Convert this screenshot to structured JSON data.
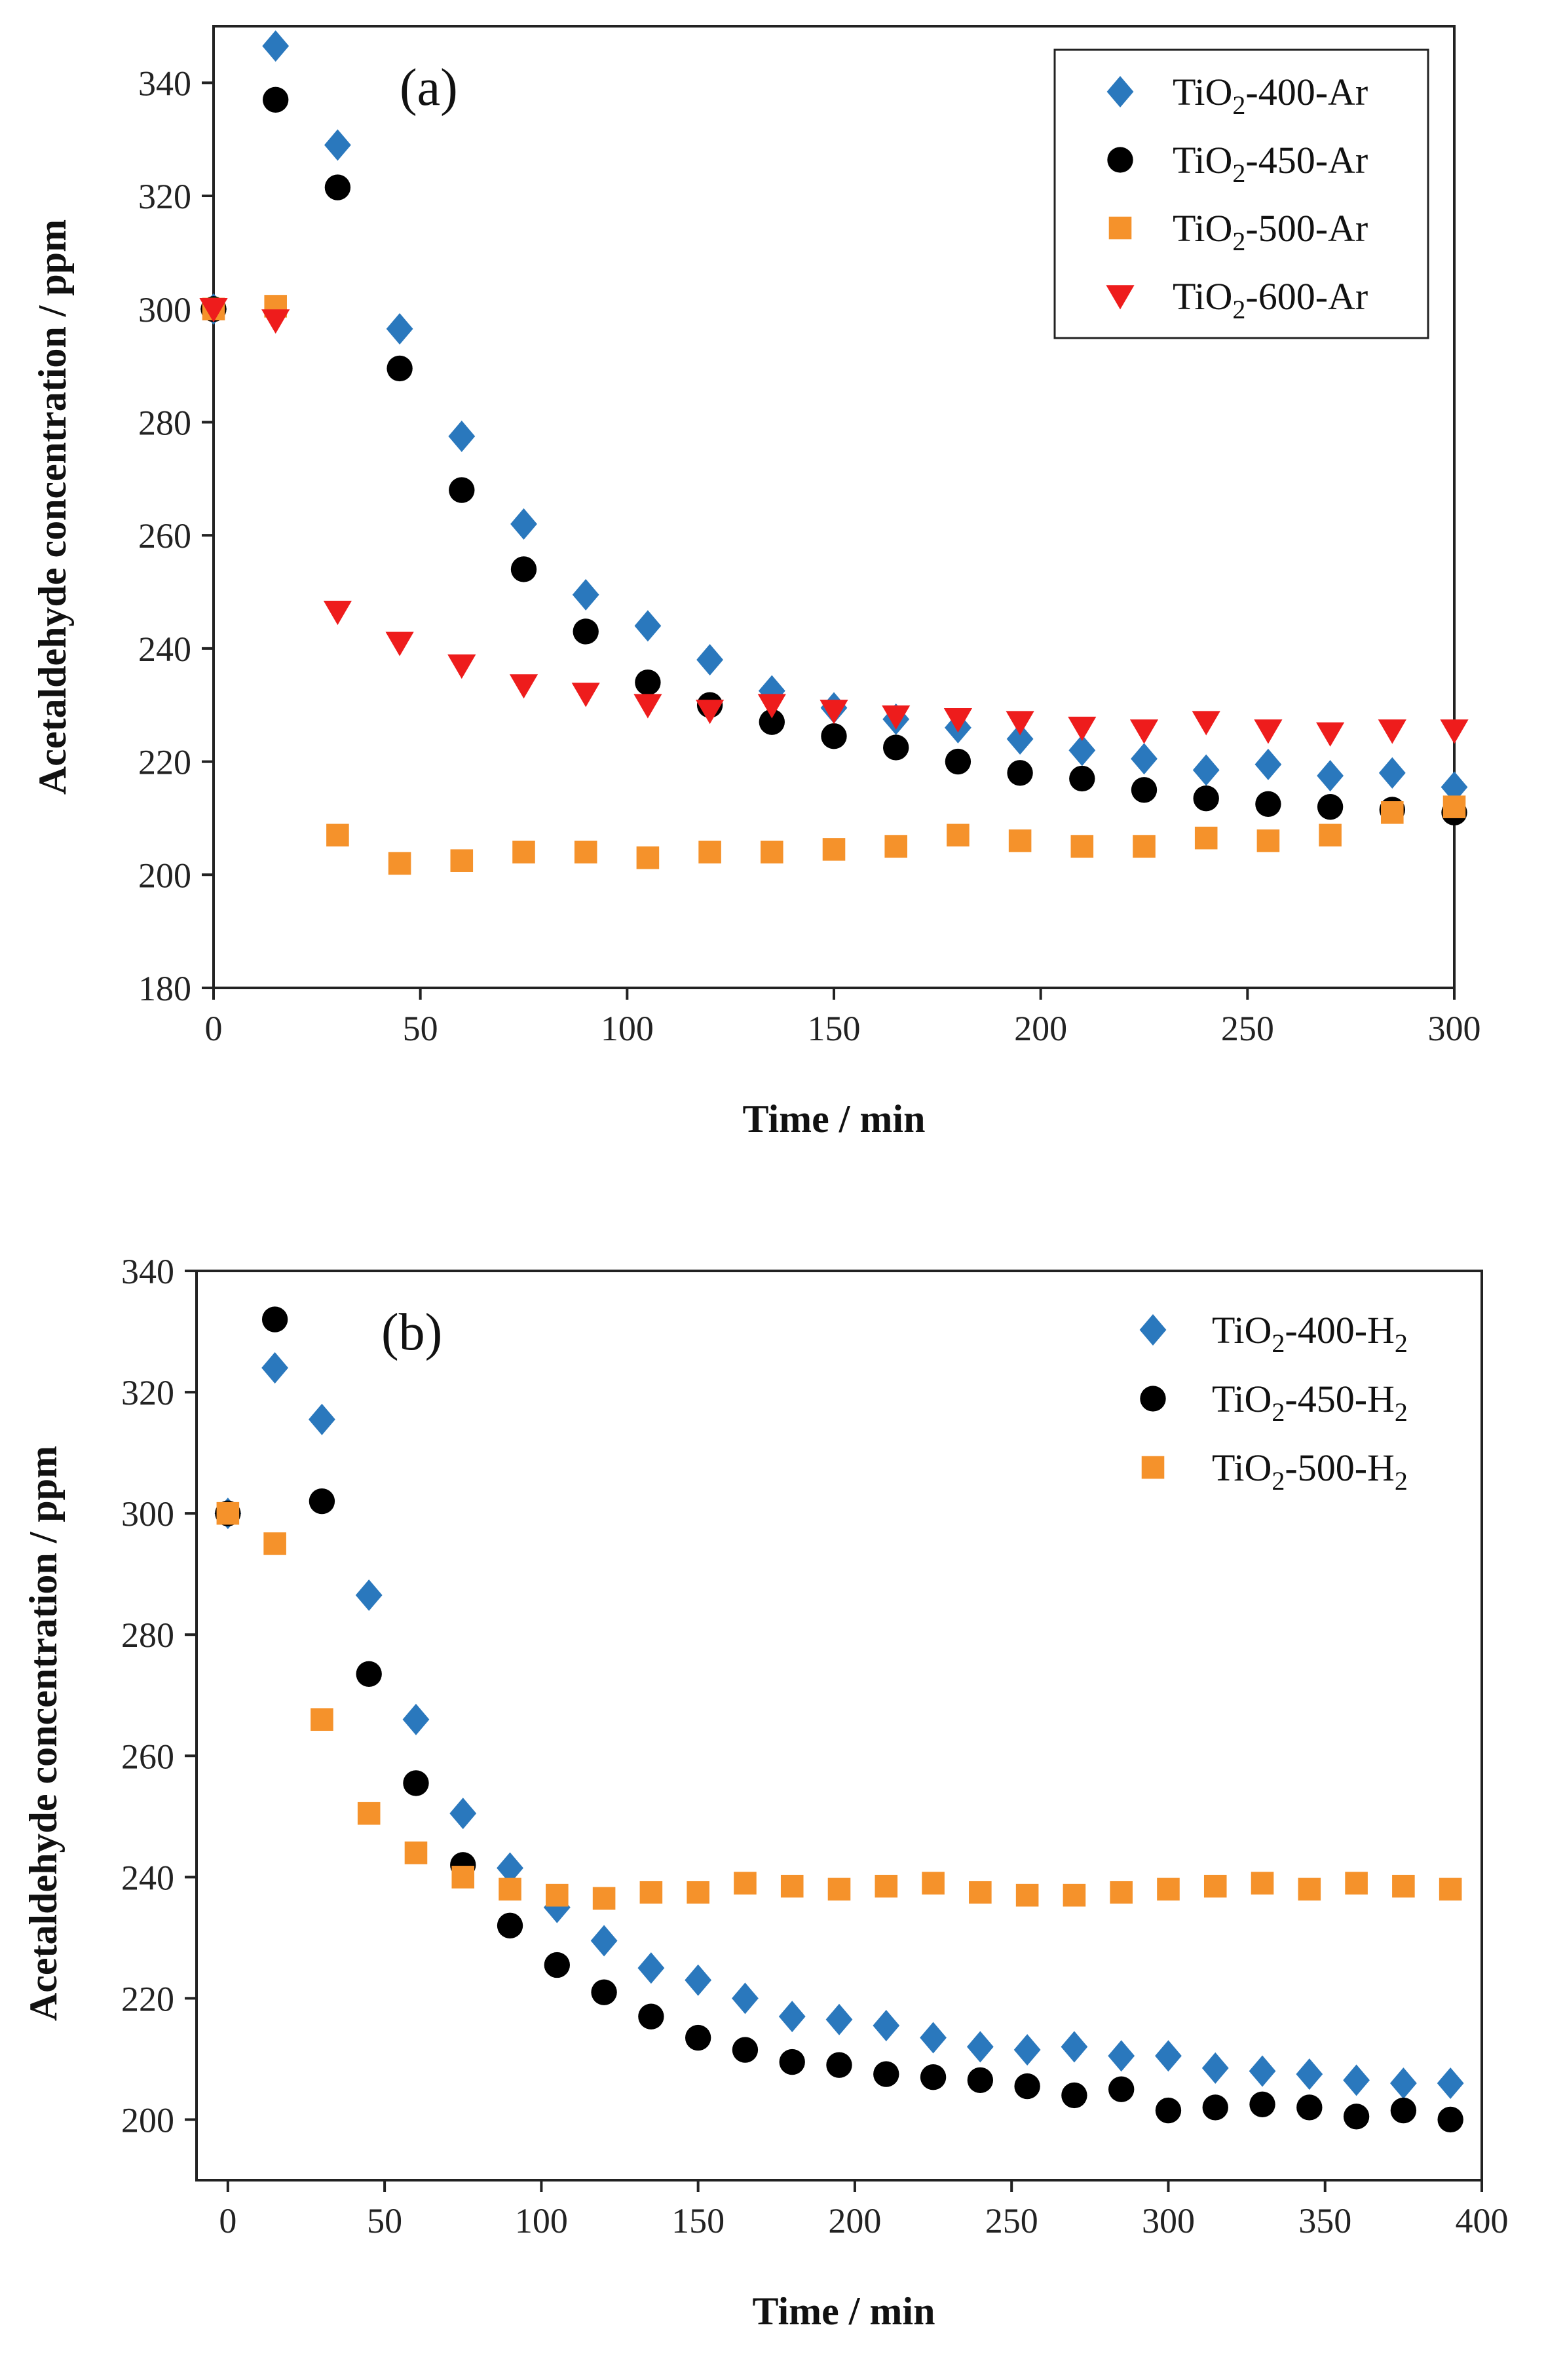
{
  "chart_data": [
    {
      "type": "scatter",
      "panel_label": "(a)",
      "xlabel": "Time / min",
      "ylabel": "Acetaldehyde concentration / ppm",
      "xlim": [
        0,
        300
      ],
      "ylim": [
        180,
        350
      ],
      "xticks": [
        0,
        50,
        100,
        150,
        200,
        250,
        300
      ],
      "xtick_labels": [
        "0",
        "50",
        "100",
        "150",
        "200",
        "250",
        "300"
      ],
      "yticks": [
        180,
        200,
        220,
        240,
        260,
        280,
        300,
        320,
        340
      ],
      "ytick_labels": [
        "180",
        "200",
        "220",
        "240",
        "260",
        "280",
        "300",
        "320",
        "340"
      ],
      "legend_position": "top-right",
      "legend_boxed": true,
      "series": [
        {
          "name": "TiO2-400-Ar",
          "label_main": "TiO",
          "label_sub": "2",
          "label_rest": "-400-Ar",
          "marker": "diamond",
          "color": "#2a78bd",
          "x": [
            0,
            15,
            30,
            45,
            60,
            75,
            90,
            105,
            120,
            135,
            150,
            165,
            180,
            195,
            210,
            225,
            240,
            255,
            270,
            285,
            300
          ],
          "values": [
            300,
            346.5,
            329,
            296.5,
            277.5,
            262,
            249.5,
            244,
            238,
            232.5,
            229.5,
            227.5,
            226,
            224,
            222,
            220.5,
            218.5,
            219.5,
            217.5,
            218,
            215.5
          ]
        },
        {
          "name": "TiO2-450-Ar",
          "label_main": "TiO",
          "label_sub": "2",
          "label_rest": "-450-Ar",
          "marker": "circle",
          "color": "#000000",
          "x": [
            0,
            15,
            30,
            45,
            60,
            75,
            90,
            105,
            120,
            135,
            150,
            165,
            180,
            195,
            210,
            225,
            240,
            255,
            270,
            285,
            300
          ],
          "values": [
            300,
            337,
            321.5,
            289.5,
            268,
            254,
            243,
            234,
            230,
            227,
            224.5,
            222.5,
            220,
            218,
            217,
            215,
            213.5,
            212.5,
            212,
            211.5,
            211
          ]
        },
        {
          "name": "TiO2-500-Ar",
          "label_main": "TiO",
          "label_sub": "2",
          "label_rest": "-500-Ar",
          "marker": "square",
          "color": "#f5922b",
          "x": [
            0,
            15,
            30,
            45,
            60,
            75,
            90,
            105,
            120,
            135,
            150,
            165,
            180,
            195,
            210,
            225,
            240,
            255,
            270,
            285,
            300
          ],
          "values": [
            300,
            300.5,
            207,
            202,
            202.5,
            204,
            204,
            203,
            204,
            204,
            204.5,
            205,
            207,
            206,
            205,
            205,
            206.5,
            206,
            207,
            211,
            212
          ]
        },
        {
          "name": "TiO2-600-Ar",
          "label_main": "TiO",
          "label_sub": "2",
          "label_rest": "-600-Ar",
          "marker": "triangle-down",
          "color": "#ee1c1c",
          "x": [
            0,
            15,
            30,
            45,
            60,
            75,
            90,
            105,
            120,
            135,
            150,
            165,
            180,
            195,
            210,
            225,
            240,
            255,
            270,
            285,
            300
          ],
          "values": [
            300,
            298,
            246.5,
            241,
            237,
            233.5,
            232,
            230,
            229,
            230,
            229,
            228,
            227.5,
            227,
            226,
            225.5,
            227,
            225.5,
            225,
            225.5,
            225.5
          ]
        }
      ]
    },
    {
      "type": "scatter",
      "panel_label": "(b)",
      "xlabel": "Time / min",
      "ylabel": "Acetaldehyde concentration / ppm",
      "xlim": [
        -10,
        400
      ],
      "ylim": [
        190,
        340
      ],
      "xticks": [
        0,
        50,
        100,
        150,
        200,
        250,
        300,
        350,
        400
      ],
      "xtick_labels": [
        "0",
        "50",
        "100",
        "150",
        "200",
        "250",
        "300",
        "350",
        "400"
      ],
      "yticks": [
        200,
        220,
        240,
        260,
        280,
        300,
        320,
        340
      ],
      "ytick_labels": [
        "200",
        "220",
        "240",
        "260",
        "280",
        "300",
        "320",
        "340"
      ],
      "legend_position": "top-right",
      "legend_boxed": false,
      "series": [
        {
          "name": "TiO2-400-H2",
          "label_main": "TiO",
          "label_sub": "2",
          "label_rest": "-400-H",
          "label_sub2": "2",
          "marker": "diamond",
          "color": "#2a78bd",
          "x": [
            0,
            15,
            30,
            45,
            60,
            75,
            90,
            105,
            120,
            135,
            150,
            165,
            180,
            195,
            210,
            225,
            240,
            255,
            270,
            285,
            300,
            315,
            330,
            345,
            360,
            375,
            390
          ],
          "values": [
            300,
            324,
            315.5,
            286.5,
            266,
            250.5,
            241.5,
            235,
            229.5,
            225,
            223,
            220,
            217,
            216.5,
            215.5,
            213.5,
            212,
            211.5,
            212,
            210.5,
            210.5,
            208.5,
            208,
            207.5,
            206.5,
            206,
            206
          ]
        },
        {
          "name": "TiO2-450-H2",
          "label_main": "TiO",
          "label_sub": "2",
          "label_rest": "-450-H",
          "label_sub2": "2",
          "marker": "circle",
          "color": "#000000",
          "x": [
            0,
            15,
            30,
            45,
            60,
            75,
            90,
            105,
            120,
            135,
            150,
            165,
            180,
            195,
            210,
            225,
            240,
            255,
            270,
            285,
            300,
            315,
            330,
            345,
            360,
            375,
            390
          ],
          "values": [
            300,
            332,
            302,
            273.5,
            255.5,
            242,
            232,
            225.5,
            221,
            217,
            213.5,
            211.5,
            209.5,
            209,
            207.5,
            207,
            206.5,
            205.5,
            204,
            205,
            201.5,
            202,
            202.5,
            202,
            200.5,
            201.5,
            200
          ]
        },
        {
          "name": "TiO2-500-H2",
          "label_main": "TiO",
          "label_sub": "2",
          "label_rest": "-500-H",
          "label_sub2": "2",
          "marker": "square",
          "color": "#f5922b",
          "x": [
            0,
            15,
            30,
            45,
            60,
            75,
            90,
            105,
            120,
            135,
            150,
            165,
            180,
            195,
            210,
            225,
            240,
            255,
            270,
            285,
            300,
            315,
            330,
            345,
            360,
            375,
            390
          ],
          "values": [
            300,
            295,
            266,
            250.5,
            244,
            240,
            238,
            237,
            236.5,
            237.5,
            237.5,
            239,
            238.5,
            238,
            238.5,
            239,
            237.5,
            237,
            237,
            237.5,
            238,
            238.5,
            239,
            238,
            239,
            238.5,
            238
          ]
        }
      ]
    }
  ]
}
